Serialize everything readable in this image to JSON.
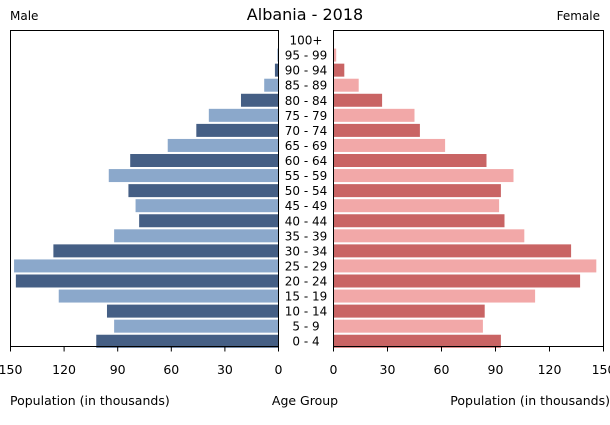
{
  "chart_data": {
    "type": "bar",
    "title": "Albania - 2018",
    "left_heading": "Male",
    "right_heading": "Female",
    "xlabel_left": "Population (in thousands)",
    "xlabel_center": "Age Group",
    "xlabel_right": "Population (in thousands)",
    "xlim": [
      0,
      150
    ],
    "left_ticks": [
      "150",
      "120",
      "90",
      "60",
      "30",
      "0"
    ],
    "right_ticks": [
      "0",
      "30",
      "60",
      "90",
      "120",
      "150"
    ],
    "tick_values_left": [
      150,
      120,
      90,
      60,
      30,
      0
    ],
    "tick_values_right": [
      0,
      30,
      60,
      90,
      120,
      150
    ],
    "categories": [
      "100+",
      "95 - 99",
      "90 - 94",
      "85 - 89",
      "80 - 84",
      "75 - 79",
      "70 - 74",
      "65 - 69",
      "60 - 64",
      "55 - 59",
      "50 - 54",
      "45 - 49",
      "40 - 44",
      "35 - 39",
      "30 - 34",
      "25 - 29",
      "20 - 24",
      "15 - 19",
      "10 - 14",
      "5 - 9",
      "0 - 4"
    ],
    "series": [
      {
        "name": "Male",
        "values": [
          0.2,
          0.6,
          2,
          8,
          21,
          39,
          46,
          62,
          83,
          95,
          84,
          80,
          78,
          92,
          126,
          148,
          147,
          123,
          96,
          92,
          102
        ]
      },
      {
        "name": "Female",
        "values": [
          0.3,
          1.5,
          6,
          14,
          27,
          45,
          48,
          62,
          85,
          100,
          93,
          92,
          95,
          106,
          132,
          146,
          137,
          112,
          84,
          83,
          93
        ]
      }
    ],
    "colors": {
      "male_dark": "#455f85",
      "male_light": "#8ba8cb",
      "female_dark": "#c96464",
      "female_light": "#f2a8a8"
    }
  }
}
